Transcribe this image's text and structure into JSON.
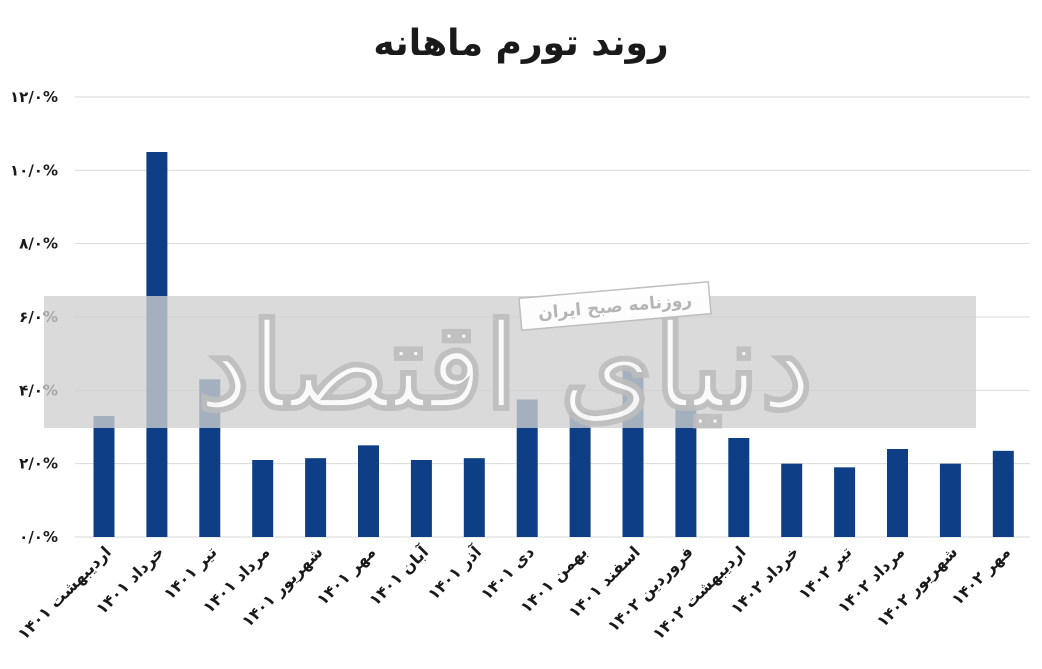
{
  "chart_data": {
    "type": "bar",
    "title": "روند تورم ماهانه",
    "categories": [
      "اردیبهشت ۱۴۰۱",
      "خرداد ۱۴۰۱",
      "تیر ۱۴۰۱",
      "مرداد ۱۴۰۱",
      "شهریور ۱۴۰۱",
      "مهر ۱۴۰۱",
      "آبان ۱۴۰۱",
      "آذر ۱۴۰۱",
      "دی ۱۴۰۱",
      "بهمن ۱۴۰۱",
      "اسفند ۱۴۰۱",
      "فروردین ۱۴۰۲",
      "اردیبهشت ۱۴۰۲",
      "خرداد ۱۴۰۲",
      "تیر ۱۴۰۲",
      "مرداد ۱۴۰۲",
      "شهریور ۱۴۰۲",
      "مهر ۱۴۰۲"
    ],
    "values": [
      3.3,
      10.5,
      4.3,
      2.1,
      2.15,
      2.5,
      2.1,
      2.15,
      3.75,
      3.4,
      4.7,
      3.6,
      2.7,
      2.0,
      1.9,
      2.4,
      2.0,
      2.35
    ],
    "ylim": [
      0,
      12
    ],
    "yticks": [
      0,
      2,
      4,
      6,
      8,
      10,
      12
    ],
    "ytick_labels": [
      "۰/۰%",
      "۲/۰%",
      "۴/۰%",
      "۶/۰%",
      "۸/۰%",
      "۱۰/۰%",
      "۱۲/۰%"
    ],
    "xlabel": "",
    "ylabel": "",
    "grid": true,
    "bar_color": "#0e3f86"
  },
  "watermark": {
    "main": "دنیای اقتصاد",
    "sub": "روزنامه صبح ایران"
  }
}
